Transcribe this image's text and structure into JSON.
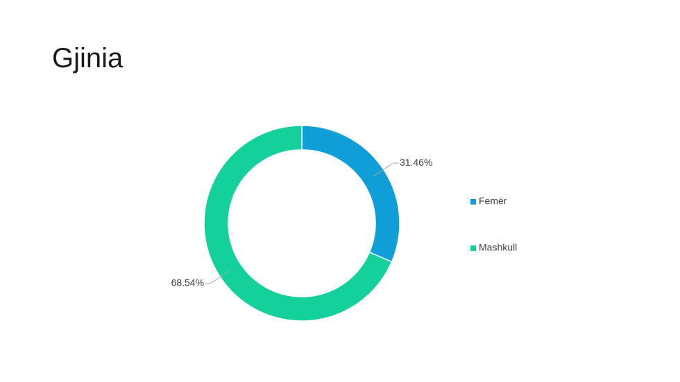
{
  "chart_data": {
    "type": "donut",
    "title": "Gjinia",
    "categories": [
      "Femër",
      "Mashkull"
    ],
    "values": [
      31.46,
      68.54
    ],
    "value_labels": [
      "31.46%",
      "68.54%"
    ],
    "colors": [
      "#0f9ed8",
      "#14d19b"
    ],
    "legend": "right"
  }
}
